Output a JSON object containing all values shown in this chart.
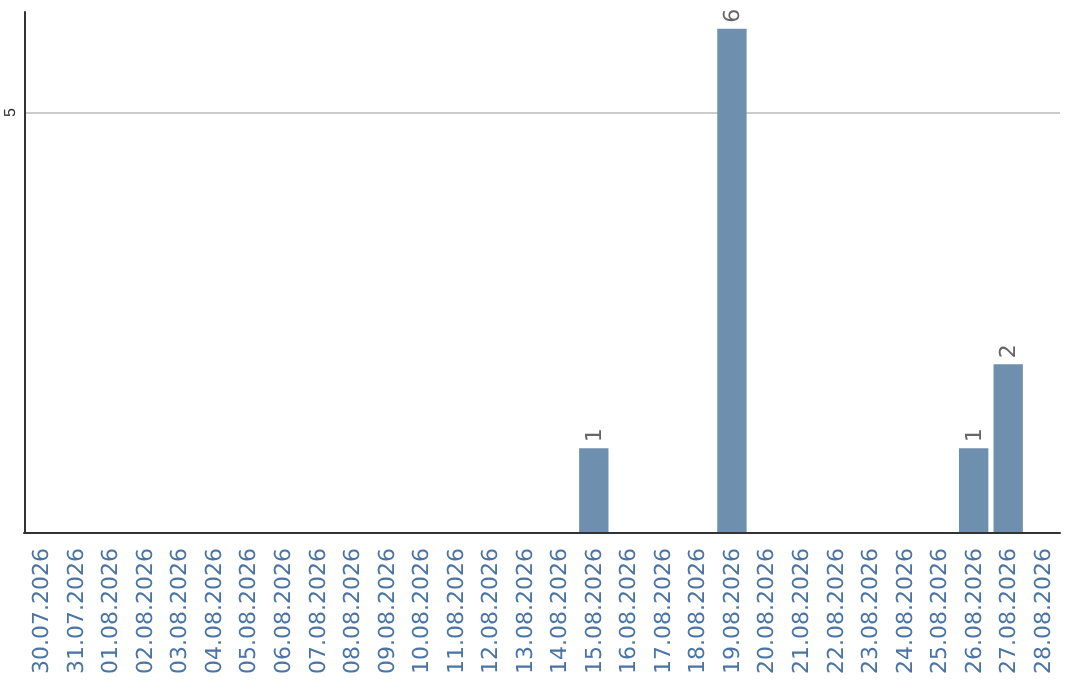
{
  "chart_data": {
    "type": "bar",
    "categories": [
      "30.07.2026",
      "31.07.2026",
      "01.08.2026",
      "02.08.2026",
      "03.08.2026",
      "04.08.2026",
      "05.08.2026",
      "06.08.2026",
      "07.08.2026",
      "08.08.2026",
      "09.08.2026",
      "10.08.2026",
      "11.08.2026",
      "12.08.2026",
      "13.08.2026",
      "14.08.2026",
      "15.08.2026",
      "16.08.2026",
      "17.08.2026",
      "18.08.2026",
      "19.08.2026",
      "20.08.2026",
      "21.08.2026",
      "22.08.2026",
      "23.08.2026",
      "24.08.2026",
      "25.08.2026",
      "26.08.2026",
      "27.08.2026",
      "28.08.2026"
    ],
    "values": [
      null,
      null,
      null,
      null,
      null,
      null,
      null,
      null,
      null,
      null,
      null,
      null,
      null,
      null,
      null,
      null,
      1,
      null,
      null,
      null,
      6,
      null,
      null,
      null,
      null,
      null,
      null,
      1,
      2,
      null
    ],
    "data_labels": true,
    "color": "#6f8fae",
    "ylim": [
      0,
      6.2
    ],
    "yticks": [
      5
    ],
    "grid": "y"
  }
}
